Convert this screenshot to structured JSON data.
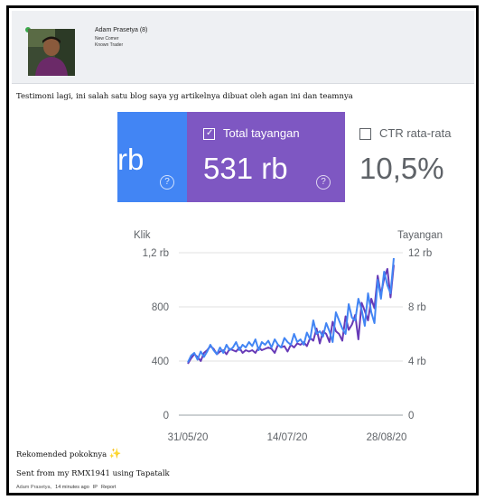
{
  "user": {
    "name": "Adam Prasetya",
    "post_count": "(8)",
    "role1": "New Comer",
    "role2": "Known Trader"
  },
  "post": {
    "text": "Testimoni lagi, ini salah satu blog saya yg artikelnya dibuat oleh agan ini dan teamnya",
    "recommend": "Rekomended pokoknya",
    "signature": "Sent from my RMX1941 using Tapatalk"
  },
  "meta": {
    "author": "Adam Prasetya,",
    "time": "14 minutes ago",
    "ip": "IP",
    "report": "Report"
  },
  "metrics": {
    "clicks_partial": "rb",
    "views_label": "Total tayangan",
    "views_value": "531 rb",
    "ctr_label": "CTR rata-rata",
    "ctr_value": "10,5%",
    "colors": {
      "clicks": "#4285f4",
      "views": "#7e57c2"
    }
  },
  "chart_data": {
    "type": "line",
    "left_axis_label": "Klik",
    "right_axis_label": "Tayangan",
    "left_ticks": [
      "0",
      "400",
      "800",
      "1,2 rb"
    ],
    "right_ticks": [
      "0",
      "4 rb",
      "8 rb",
      "12 rb"
    ],
    "x_ticks": [
      "31/05/20",
      "14/07/20",
      "28/08/20"
    ],
    "ylim_left": [
      0,
      1200
    ],
    "ylim_right": [
      0,
      12000
    ],
    "series": [
      {
        "name": "Klik",
        "color": "#4285f4",
        "axis": "left",
        "values": [
          390,
          440,
          460,
          410,
          470,
          430,
          470,
          520,
          480,
          450,
          500,
          460,
          520,
          480,
          500,
          540,
          480,
          520,
          500,
          540,
          510,
          560,
          480,
          540,
          520,
          550,
          500,
          560,
          520,
          500,
          570,
          540,
          520,
          600,
          540,
          560,
          520,
          610,
          560,
          700,
          600,
          620,
          580,
          680,
          620,
          540,
          760,
          700,
          640,
          600,
          820,
          720,
          700,
          860,
          780,
          660,
          900,
          760,
          680,
          1000,
          860,
          1060,
          960,
          900,
          1160
        ]
      },
      {
        "name": "Tayangan",
        "color": "#673ab7",
        "axis": "right",
        "values": [
          3800,
          4200,
          4500,
          4300,
          4000,
          4600,
          4800,
          5100,
          4900,
          4500,
          4700,
          4800,
          4500,
          4900,
          4800,
          4700,
          5000,
          4600,
          4800,
          4700,
          4800,
          4600,
          5000,
          4800,
          4900,
          5000,
          4900,
          4600,
          5200,
          5000,
          5100,
          4700,
          5200,
          5000,
          5300,
          5200,
          5400,
          5100,
          5700,
          5500,
          6400,
          5300,
          6200,
          6000,
          5400,
          6900,
          6200,
          6000,
          5500,
          7300,
          6300,
          6700,
          7400,
          5600,
          8300,
          7700,
          7000,
          8600,
          7900,
          10300,
          8900,
          10100,
          10800,
          8700,
          11100
        ]
      }
    ]
  }
}
